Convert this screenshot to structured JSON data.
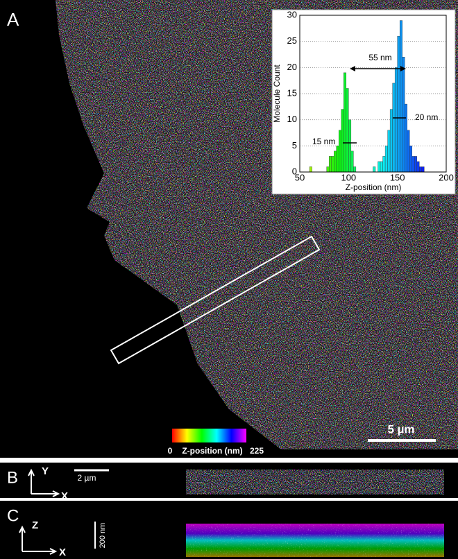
{
  "figure": {
    "panel_a": "A",
    "panel_b": "B",
    "panel_c": "C",
    "scale_a": "5 µm",
    "scale_b": "2 µm",
    "scale_c": "200 nm",
    "axis_b_y": "Y",
    "axis_b_x": "X",
    "axis_c_z": "Z",
    "axis_c_x": "X",
    "colorbar": {
      "range": [
        0,
        225
      ],
      "label": "Z-position (nm)"
    }
  },
  "chart_data": {
    "type": "histogram",
    "xlabel": "Z-position (nm)",
    "ylabel": "Molecule Count",
    "annotations": [
      "55 nm",
      "20 nm",
      "15 nm"
    ],
    "bins": [
      60,
      62.5,
      65,
      67.5,
      70,
      72.5,
      75,
      77.5,
      80,
      82.5,
      85,
      87.5,
      90,
      92.5,
      95,
      97.5,
      100,
      102.5,
      105,
      107.5,
      110,
      112.5,
      115,
      117.5,
      120,
      122.5,
      125,
      127.5,
      130,
      132.5,
      135,
      137.5,
      140,
      142.5,
      145,
      147.5,
      150,
      152.5,
      155,
      157.5,
      160,
      162.5,
      165,
      167.5,
      170,
      172.5,
      175,
      177.5,
      180
    ],
    "values": [
      1,
      0,
      0,
      0,
      0,
      0,
      0,
      1,
      3,
      3,
      4,
      5,
      8,
      12,
      19,
      16,
      10,
      4,
      1,
      0,
      0,
      0,
      0,
      0,
      0,
      0,
      1,
      0,
      2,
      2,
      3,
      5,
      8,
      12,
      17,
      20,
      26,
      29,
      22,
      13,
      8,
      5,
      3,
      3,
      2,
      1,
      1,
      0
    ],
    "xlim": [
      50,
      200
    ],
    "xticks": [
      50,
      100,
      150,
      200
    ],
    "ylim": [
      0,
      30
    ],
    "yticks": [
      0,
      5,
      10,
      15,
      20,
      25,
      30
    ],
    "grid": true
  }
}
